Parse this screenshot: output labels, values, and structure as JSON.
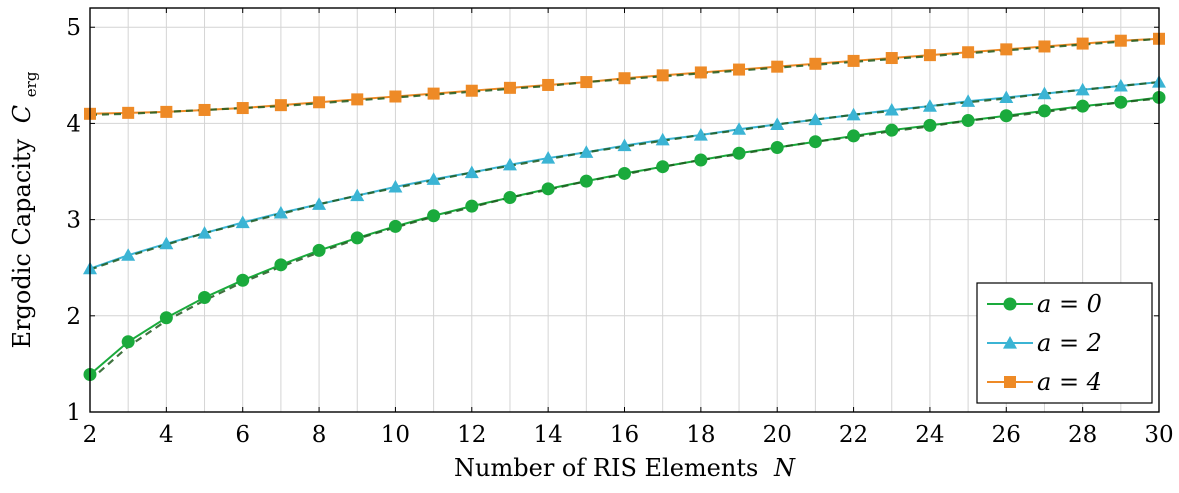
{
  "chart_data": {
    "type": "line",
    "xlabel": "Number of RIS Elements",
    "xlabel_var": "N",
    "ylabel": "Ergodic Capacity",
    "ylabel_var": "C",
    "ylabel_sub": "erg",
    "xlim": [
      2,
      30
    ],
    "ylim": [
      1,
      5.2
    ],
    "xticks": [
      "2",
      "4",
      "6",
      "8",
      "10",
      "12",
      "14",
      "16",
      "18",
      "20",
      "22",
      "24",
      "26",
      "28",
      "30"
    ],
    "yticks": [
      "1",
      "2",
      "3",
      "4",
      "5"
    ],
    "grid": true,
    "legend_position": "bottom-right",
    "x": [
      2,
      3,
      4,
      5,
      6,
      7,
      8,
      9,
      10,
      11,
      12,
      13,
      14,
      15,
      16,
      17,
      18,
      19,
      20,
      21,
      22,
      23,
      24,
      25,
      26,
      27,
      28,
      29,
      30
    ],
    "series": [
      {
        "name": "a = 0",
        "color": "#1aaa3c",
        "marker": "circle",
        "values": [
          1.39,
          1.73,
          1.98,
          2.19,
          2.37,
          2.53,
          2.68,
          2.81,
          2.93,
          3.04,
          3.14,
          3.23,
          3.32,
          3.4,
          3.48,
          3.55,
          3.62,
          3.69,
          3.75,
          3.81,
          3.87,
          3.93,
          3.98,
          4.03,
          4.08,
          4.13,
          4.18,
          4.22,
          4.27
        ],
        "approx_values": [
          1.33,
          1.68,
          1.95,
          2.16,
          2.35,
          2.51,
          2.66,
          2.8,
          2.92,
          3.03,
          3.13,
          3.23,
          3.31,
          3.4,
          3.47,
          3.55,
          3.62,
          3.68,
          3.75,
          3.81,
          3.86,
          3.92,
          3.97,
          4.03,
          4.07,
          4.12,
          4.17,
          4.22,
          4.26
        ]
      },
      {
        "name": "a = 2",
        "color": "#3bb4d4",
        "marker": "triangle",
        "values": [
          2.49,
          2.63,
          2.75,
          2.86,
          2.97,
          3.07,
          3.16,
          3.25,
          3.34,
          3.42,
          3.49,
          3.57,
          3.64,
          3.7,
          3.77,
          3.83,
          3.88,
          3.94,
          3.99,
          4.04,
          4.09,
          4.14,
          4.18,
          4.23,
          4.27,
          4.31,
          4.35,
          4.39,
          4.43
        ],
        "approx_values": [
          2.48,
          2.62,
          2.74,
          2.86,
          2.96,
          3.06,
          3.16,
          3.25,
          3.33,
          3.41,
          3.49,
          3.56,
          3.63,
          3.7,
          3.76,
          3.82,
          3.88,
          3.93,
          3.99,
          4.04,
          4.09,
          4.13,
          4.18,
          4.22,
          4.26,
          4.31,
          4.35,
          4.39,
          4.43
        ]
      },
      {
        "name": "a = 4",
        "color": "#ee8a26",
        "marker": "square",
        "values": [
          4.1,
          4.11,
          4.12,
          4.14,
          4.16,
          4.19,
          4.22,
          4.25,
          4.28,
          4.31,
          4.34,
          4.37,
          4.4,
          4.43,
          4.47,
          4.5,
          4.53,
          4.56,
          4.59,
          4.62,
          4.65,
          4.68,
          4.71,
          4.74,
          4.77,
          4.8,
          4.83,
          4.86,
          4.88
        ],
        "approx_values": [
          4.09,
          4.1,
          4.12,
          4.14,
          4.16,
          4.18,
          4.21,
          4.24,
          4.27,
          4.3,
          4.33,
          4.36,
          4.39,
          4.43,
          4.46,
          4.49,
          4.52,
          4.55,
          4.58,
          4.61,
          4.64,
          4.67,
          4.7,
          4.73,
          4.76,
          4.79,
          4.82,
          4.85,
          4.88
        ]
      }
    ]
  }
}
